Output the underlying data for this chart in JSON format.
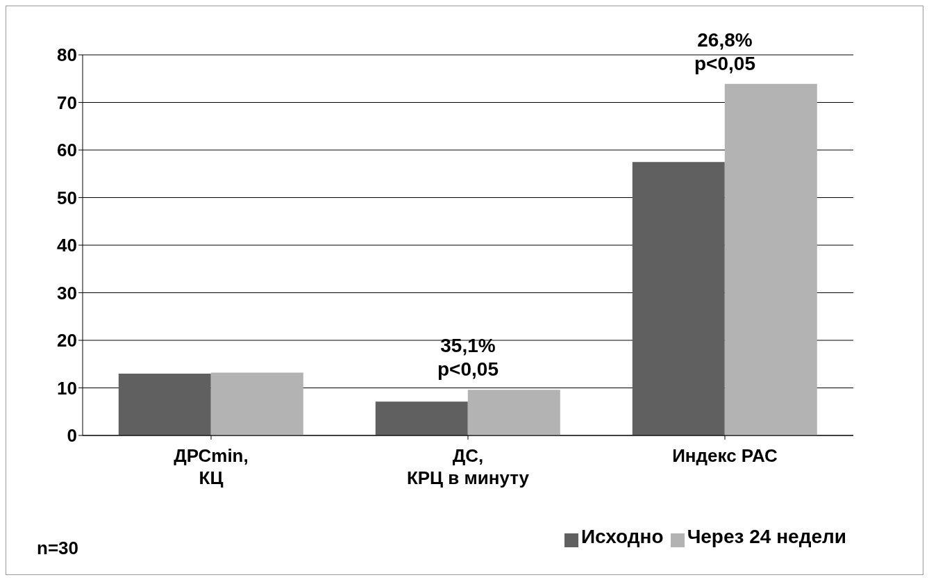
{
  "chart_data": {
    "type": "bar",
    "categories": [
      "ДРСmin,\nКЦ",
      "ДС,\nКРЦ в минуту",
      "Индекс РАС"
    ],
    "series": [
      {
        "name": "Исходно",
        "color": "#606060",
        "values": [
          13,
          7.1,
          57.5
        ]
      },
      {
        "name": "Через 24 недели",
        "color": "#b3b3b3",
        "values": [
          13.2,
          9.6,
          73.9
        ]
      }
    ],
    "ylim": [
      0,
      80
    ],
    "yticks": [
      0,
      10,
      20,
      30,
      40,
      50,
      60,
      70,
      80
    ],
    "grid": "y",
    "legend": "bottom right",
    "annotations": [
      {
        "text": "35,1%\np<0,05",
        "x": "ДС,\nКРЦ в минуту",
        "y": 9.6
      },
      {
        "text": "26,8%\np<0,05",
        "x": "Индекс РАС",
        "y": 73.9
      },
      "n=30"
    ]
  }
}
